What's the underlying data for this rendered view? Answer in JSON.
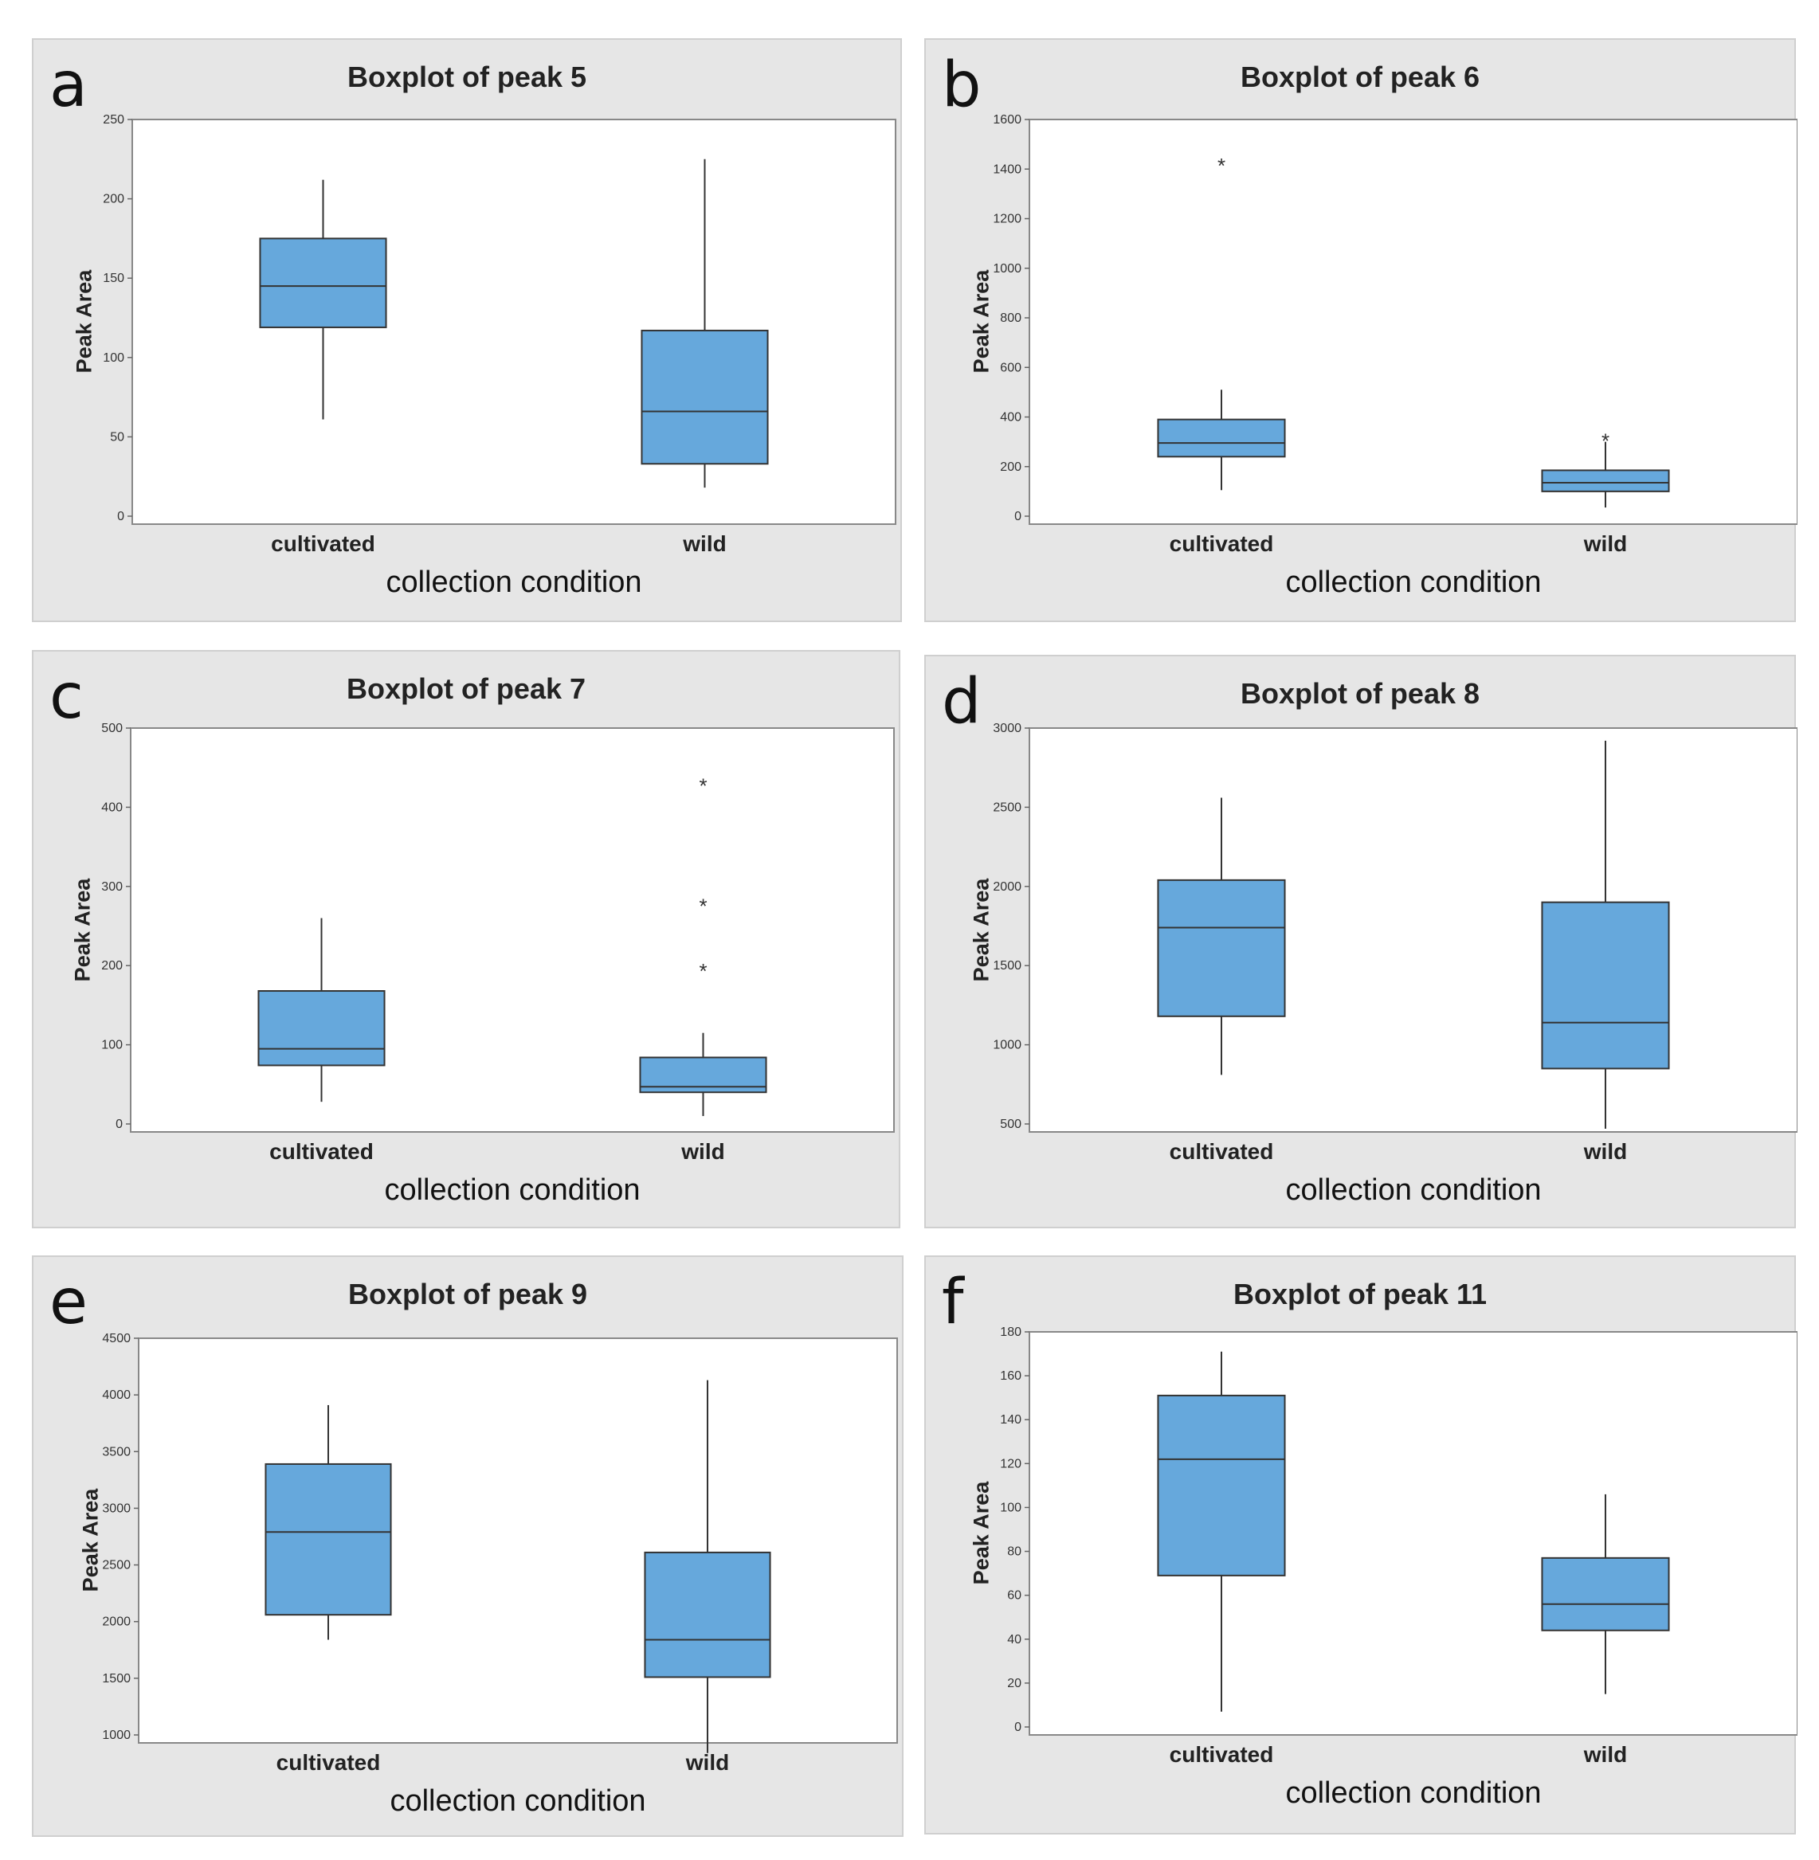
{
  "chart_data": [
    {
      "panel_letter": "a",
      "type": "box",
      "title": "Boxplot of peak 5",
      "xlabel": "collection condition",
      "ylabel": "Peak Area",
      "ylim": [
        0,
        250
      ],
      "yticks": [
        0,
        50,
        100,
        150,
        200,
        250
      ],
      "categories": [
        "cultivated",
        "wild"
      ],
      "boxes": [
        {
          "name": "cultivated",
          "whisker_low": 61,
          "q1": 119,
          "median": 145,
          "q3": 175,
          "whisker_high": 212,
          "outliers": []
        },
        {
          "name": "wild",
          "whisker_low": 18,
          "q1": 33,
          "median": 66,
          "q3": 117,
          "whisker_high": 225,
          "outliers": []
        }
      ]
    },
    {
      "panel_letter": "b",
      "type": "box",
      "title": "Boxplot of peak 6",
      "xlabel": "collection condition",
      "ylabel": "Peak Area",
      "ylim": [
        0,
        1600
      ],
      "yticks": [
        0,
        200,
        400,
        600,
        800,
        1000,
        1200,
        1400,
        1600
      ],
      "categories": [
        "cultivated",
        "wild"
      ],
      "boxes": [
        {
          "name": "cultivated",
          "whisker_low": 105,
          "q1": 240,
          "median": 295,
          "q3": 390,
          "whisker_high": 510,
          "outliers": [
            1430
          ]
        },
        {
          "name": "wild",
          "whisker_low": 35,
          "q1": 100,
          "median": 135,
          "q3": 185,
          "whisker_high": 300,
          "outliers": [
            320
          ]
        }
      ]
    },
    {
      "panel_letter": "c",
      "type": "box",
      "title": "Boxplot of peak 7",
      "xlabel": "collection condition",
      "ylabel": "Peak Area",
      "ylim": [
        0,
        500
      ],
      "yticks": [
        0,
        100,
        200,
        300,
        400,
        500
      ],
      "categories": [
        "cultivated",
        "wild"
      ],
      "boxes": [
        {
          "name": "cultivated",
          "whisker_low": 28,
          "q1": 74,
          "median": 95,
          "q3": 168,
          "whisker_high": 260,
          "outliers": []
        },
        {
          "name": "wild",
          "whisker_low": 10,
          "q1": 40,
          "median": 47,
          "q3": 84,
          "whisker_high": 115,
          "outliers": [
            198,
            280,
            432
          ]
        }
      ]
    },
    {
      "panel_letter": "d",
      "type": "box",
      "title": "Boxplot of peak 8",
      "xlabel": "collection condition",
      "ylabel": "Peak Area",
      "ylim": [
        500,
        3000
      ],
      "yticks": [
        500,
        1000,
        1500,
        2000,
        2500,
        3000
      ],
      "categories": [
        "cultivated",
        "wild"
      ],
      "boxes": [
        {
          "name": "cultivated",
          "whisker_low": 810,
          "q1": 1180,
          "median": 1740,
          "q3": 2040,
          "whisker_high": 2560,
          "outliers": []
        },
        {
          "name": "wild",
          "whisker_low": 470,
          "q1": 850,
          "median": 1140,
          "q3": 1900,
          "whisker_high": 2920,
          "outliers": []
        }
      ]
    },
    {
      "panel_letter": "e",
      "type": "box",
      "title": "Boxplot of peak 9",
      "xlabel": "collection condition",
      "ylabel": "Peak Area",
      "ylim": [
        1000,
        4500
      ],
      "yticks": [
        1000,
        1500,
        2000,
        2500,
        3000,
        3500,
        4000,
        4500
      ],
      "categories": [
        "cultivated",
        "wild"
      ],
      "boxes": [
        {
          "name": "cultivated",
          "whisker_low": 1840,
          "q1": 2060,
          "median": 2790,
          "q3": 3390,
          "whisker_high": 3910,
          "outliers": []
        },
        {
          "name": "wild",
          "whisker_low": 840,
          "q1": 1510,
          "median": 1840,
          "q3": 2610,
          "whisker_high": 4130,
          "outliers": []
        }
      ]
    },
    {
      "panel_letter": "f",
      "type": "box",
      "title": "Boxplot of peak 11",
      "xlabel": "collection condition",
      "ylabel": "Peak Area",
      "ylim": [
        0,
        180
      ],
      "yticks": [
        0,
        20,
        40,
        60,
        80,
        100,
        120,
        140,
        160,
        180
      ],
      "categories": [
        "cultivated",
        "wild"
      ],
      "boxes": [
        {
          "name": "cultivated",
          "whisker_low": 7,
          "q1": 69,
          "median": 122,
          "q3": 151,
          "whisker_high": 171,
          "outliers": []
        },
        {
          "name": "wild",
          "whisker_low": 15,
          "q1": 44,
          "median": 56,
          "q3": 77,
          "whisker_high": 106,
          "outliers": []
        }
      ]
    }
  ],
  "colors": {
    "box_fill": "#66a8dc",
    "panel_bg": "#e6e6e6",
    "plot_bg": "#ffffff"
  }
}
